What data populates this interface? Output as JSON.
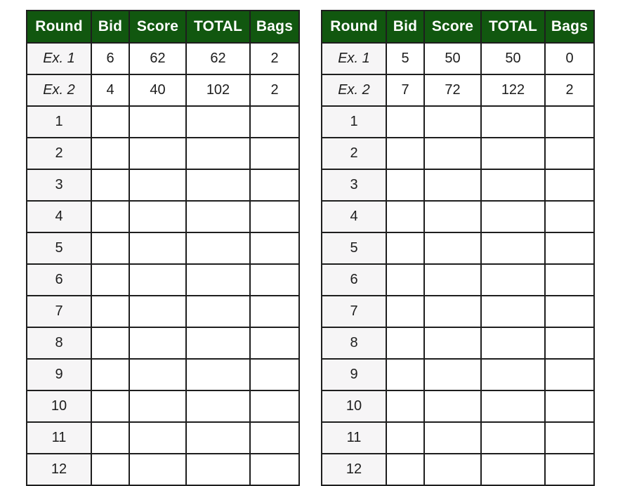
{
  "colors": {
    "header_bg": "#11570f",
    "header_text": "#ffffff",
    "round_col_bg": "#f6f5f6",
    "cell_bg": "#ffffff",
    "border": "#1e1e1e",
    "text": "#1d1d1d"
  },
  "columns": [
    "Round",
    "Bid",
    "Score",
    "TOTAL",
    "Bags"
  ],
  "tables": [
    {
      "id": "left",
      "example_rows": [
        {
          "round": "Ex. 1",
          "bid": "6",
          "score": "62",
          "total": "62",
          "bags": "2"
        },
        {
          "round": "Ex. 2",
          "bid": "4",
          "score": "40",
          "total": "102",
          "bags": "2"
        }
      ],
      "rounds": [
        "1",
        "2",
        "3",
        "4",
        "5",
        "6",
        "7",
        "8",
        "9",
        "10",
        "11",
        "12"
      ]
    },
    {
      "id": "right",
      "example_rows": [
        {
          "round": "Ex. 1",
          "bid": "5",
          "score": "50",
          "total": "50",
          "bags": "0"
        },
        {
          "round": "Ex. 2",
          "bid": "7",
          "score": "72",
          "total": "122",
          "bags": "2"
        }
      ],
      "rounds": [
        "1",
        "2",
        "3",
        "4",
        "5",
        "6",
        "7",
        "8",
        "9",
        "10",
        "11",
        "12"
      ]
    }
  ]
}
